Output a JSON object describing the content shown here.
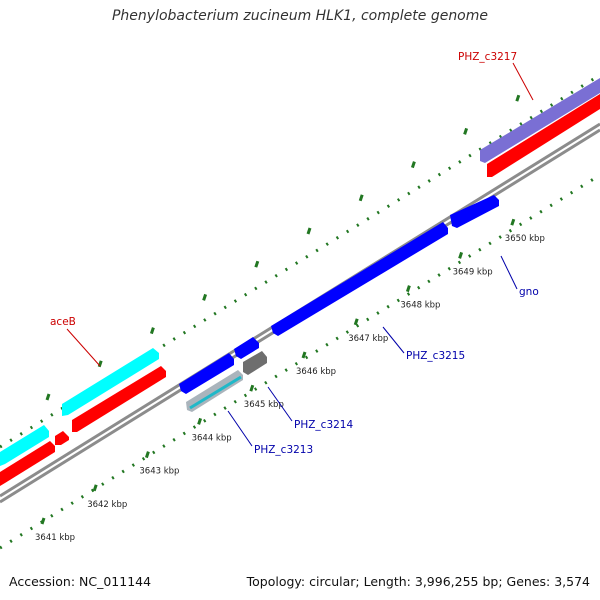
{
  "title": "Phenylobacterium zucineum HLK1, complete genome",
  "footer": {
    "accession": "Accession: NC_011144",
    "summary": "Topology: circular; Length: 3,996,255 bp; Genes: 3,574"
  },
  "colors": {
    "backbone": "#8c8c8c",
    "cds_forward": "#ff0000",
    "gene_forward": "#00ffff",
    "gene_reverse": "#0000ff",
    "gene_other": "#7a6fd4",
    "gene_grey": "#777777",
    "tick": "#227722",
    "label_red": "#cc0000",
    "label_blue": "#0000aa"
  },
  "ruler": {
    "unit": "kbp",
    "ticks": [
      {
        "value": 3641,
        "label": "3641 kbp"
      },
      {
        "value": 3642,
        "label": "3642 kbp"
      },
      {
        "value": 3643,
        "label": "3643 kbp"
      },
      {
        "value": 3644,
        "label": "3644 kbp"
      },
      {
        "value": 3645,
        "label": "3645 kbp"
      },
      {
        "value": 3646,
        "label": "3646 kbp"
      },
      {
        "value": 3647,
        "label": "3647 kbp"
      },
      {
        "value": 3648,
        "label": "3648 kbp"
      },
      {
        "value": 3649,
        "label": "3649 kbp"
      },
      {
        "value": 3650,
        "label": "3650 kbp"
      }
    ]
  },
  "gene_labels": [
    {
      "id": "aceb",
      "text": "aceB",
      "color_key": "label_red"
    },
    {
      "id": "phz-c3217",
      "text": "PHZ_c3217",
      "color_key": "label_red"
    },
    {
      "id": "gno",
      "text": "gno",
      "color_key": "label_blue"
    },
    {
      "id": "phz-c3215",
      "text": "PHZ_c3215",
      "color_key": "label_blue"
    },
    {
      "id": "phz-c3214",
      "text": "PHZ_c3214",
      "color_key": "label_blue"
    },
    {
      "id": "phz-c3213",
      "text": "PHZ_c3213",
      "color_key": "label_blue"
    }
  ]
}
